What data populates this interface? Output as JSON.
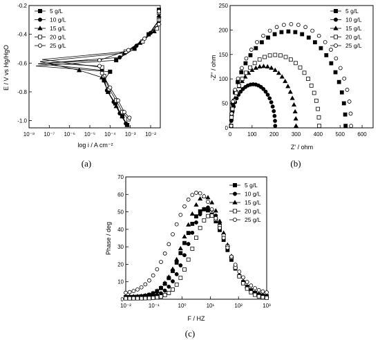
{
  "chart_data": [
    {
      "type": "line",
      "panel_label": "(a)",
      "xlabel": "log i / A cm⁻²",
      "ylabel": "E / V vs Hg/HgO",
      "x_scale": "log",
      "xlim": [
        1e-08,
        0.03
      ],
      "ylim": [
        -1.05,
        -0.2
      ],
      "x_ticks": [
        1e-08,
        1e-07,
        1e-06,
        1e-05,
        0.0001,
        0.001,
        0.01
      ],
      "x_tick_labels": [
        "10⁻⁸",
        "10⁻⁷",
        "10⁻⁶",
        "10⁻⁵",
        "10⁻⁴",
        "10⁻³",
        "10⁻²"
      ],
      "y_ticks": [
        -1.0,
        -0.8,
        -0.6,
        -0.4,
        -0.2
      ],
      "y_tick_labels": [
        "-1.0",
        "-0.8",
        "-0.6",
        "-0.4",
        "-0.2"
      ],
      "legend_position": "top-left",
      "series": [
        {
          "name": "5 g/L",
          "marker": "filled-square",
          "points": [
            [
              0.0002,
              -0.58
            ],
            [
              0.0016,
              -0.5
            ],
            [
              0.008,
              -0.4
            ],
            [
              0.03,
              -0.3
            ],
            [
              0.07,
              -0.23
            ],
            [
              0.0001,
              -0.66
            ],
            [
              5e-05,
              -0.72
            ],
            [
              8e-05,
              -0.8
            ],
            [
              0.00018,
              -0.88
            ],
            [
              0.0004,
              -0.97
            ],
            [
              0.0007,
              -1.03
            ]
          ]
        },
        {
          "name": "10 g/L",
          "marker": "filled-circle",
          "points": [
            [
              0.0003,
              -0.56
            ],
            [
              0.002,
              -0.48
            ],
            [
              0.01,
              -0.39
            ],
            [
              0.04,
              -0.3
            ],
            [
              0.09,
              -0.24
            ],
            [
              4e-05,
              -0.65
            ],
            [
              5e-05,
              -0.7
            ],
            [
              7e-05,
              -0.79
            ],
            [
              0.00015,
              -0.87
            ],
            [
              0.0003,
              -0.95
            ],
            [
              0.0006,
              -1.02
            ]
          ]
        },
        {
          "name": "15 g/L",
          "marker": "filled-triangle",
          "points": [
            [
              0.0005,
              -0.53
            ],
            [
              0.003,
              -0.46
            ],
            [
              0.015,
              -0.38
            ],
            [
              0.05,
              -0.32
            ],
            [
              0.12,
              -0.27
            ],
            [
              3e-06,
              -0.65
            ],
            [
              4e-05,
              -0.7
            ],
            [
              8e-05,
              -0.8
            ],
            [
              0.0002,
              -0.9
            ],
            [
              0.0004,
              -0.97
            ],
            [
              0.0007,
              -1.03
            ]
          ]
        },
        {
          "name": "20 g/L",
          "marker": "open-square",
          "points": [
            [
              0.0006,
              -0.52
            ],
            [
              0.004,
              -0.45
            ],
            [
              0.02,
              -0.36
            ],
            [
              0.06,
              -0.3
            ],
            [
              0.12,
              -0.25
            ],
            [
              4e-05,
              -0.63
            ],
            [
              5e-05,
              -0.69
            ],
            [
              9e-05,
              -0.78
            ],
            [
              0.0002,
              -0.86
            ],
            [
              0.0004,
              -0.94
            ],
            [
              0.0008,
              -0.99
            ]
          ]
        },
        {
          "name": "25 g/L",
          "marker": "open-circle",
          "points": [
            [
              3e-05,
              -0.58
            ],
            [
              0.0008,
              -0.51
            ],
            [
              0.005,
              -0.43
            ],
            [
              0.03,
              -0.33
            ],
            [
              0.14,
              -0.24
            ],
            [
              3e-05,
              -0.62
            ],
            [
              4e-05,
              -0.67
            ],
            [
              0.0001,
              -0.77
            ],
            [
              0.00025,
              -0.86
            ],
            [
              0.0005,
              -0.94
            ],
            [
              0.0009,
              -0.98
            ]
          ]
        }
      ]
    },
    {
      "type": "scatter",
      "panel_label": "(b)",
      "xlabel": "Z' / ohm",
      "ylabel": "-Z'' / ohm",
      "xlim": [
        0,
        650
      ],
      "ylim": [
        0,
        250
      ],
      "x_ticks": [
        0,
        100,
        200,
        300,
        400,
        500,
        600
      ],
      "y_ticks": [
        0,
        50,
        100,
        150,
        200,
        250
      ],
      "legend_position": "top-right",
      "series": [
        {
          "name": "5 g/L",
          "marker": "filled-square",
          "arc": {
            "start": 5,
            "end": 525,
            "peak": 193
          }
        },
        {
          "name": "10 g/L",
          "marker": "filled-circle",
          "arc": {
            "start": 5,
            "end": 205,
            "peak": 85
          }
        },
        {
          "name": "15 g/L",
          "marker": "filled-triangle",
          "arc": {
            "start": 5,
            "end": 300,
            "peak": 122
          }
        },
        {
          "name": "20 g/L",
          "marker": "open-square",
          "arc": {
            "start": 5,
            "end": 405,
            "peak": 145
          }
        },
        {
          "name": "25 g/L",
          "marker": "open-circle",
          "arc": {
            "start": 5,
            "end": 550,
            "peak": 208
          }
        }
      ]
    },
    {
      "type": "scatter",
      "panel_label": "(c)",
      "xlabel": "F / HZ",
      "ylabel": "Phase / deg",
      "x_scale": "log",
      "xlim": [
        0.01,
        1000
      ],
      "ylim": [
        0,
        70
      ],
      "x_ticks": [
        0.01,
        0.1,
        1,
        10,
        100,
        1000
      ],
      "x_tick_labels": [
        "10⁻²",
        "10⁻¹",
        "10⁰",
        "10¹",
        "10²",
        "10³"
      ],
      "y_ticks": [
        0,
        10,
        20,
        30,
        40,
        50,
        60,
        70
      ],
      "legend_position": "top-right",
      "series": [
        {
          "name": "5 g/L",
          "marker": "filled-square",
          "peak": {
            "f": 6.3,
            "phase": 51.5,
            "base": 1.2,
            "width": 0.98
          }
        },
        {
          "name": "10 g/L",
          "marker": "filled-circle",
          "peak": {
            "f": 8.0,
            "phase": 52.5,
            "base": 1.0,
            "width": 0.9
          }
        },
        {
          "name": "15 g/L",
          "marker": "filled-triangle",
          "peak": {
            "f": 6.3,
            "phase": 59.0,
            "base": 1.5,
            "width": 0.95
          }
        },
        {
          "name": "20 g/L",
          "marker": "open-square",
          "peak": {
            "f": 10.0,
            "phase": 48.0,
            "base": 0.5,
            "width": 0.85
          }
        },
        {
          "name": "25 g/L",
          "marker": "open-circle",
          "peak": {
            "f": 3.5,
            "phase": 61.0,
            "base": 3.0,
            "width": 1.15
          }
        }
      ]
    }
  ]
}
